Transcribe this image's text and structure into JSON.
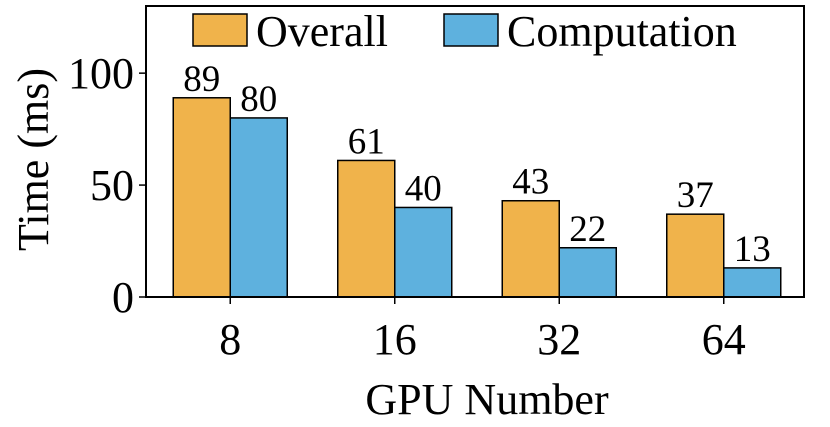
{
  "chart_data": {
    "type": "bar",
    "categories": [
      "8",
      "16",
      "32",
      "64"
    ],
    "series": [
      {
        "name": "Overall",
        "values": [
          89,
          61,
          43,
          37
        ],
        "color": "#F0B34B"
      },
      {
        "name": "Computation",
        "values": [
          80,
          40,
          22,
          13
        ],
        "color": "#5EB1DE"
      }
    ],
    "xlabel": "GPU Number",
    "ylabel": "Time (ms)",
    "ylim": [
      0,
      130
    ],
    "yticks": [
      0,
      50,
      100
    ],
    "legend": "top-right, horizontal, inside plot",
    "grid": false,
    "data_labels": true
  }
}
